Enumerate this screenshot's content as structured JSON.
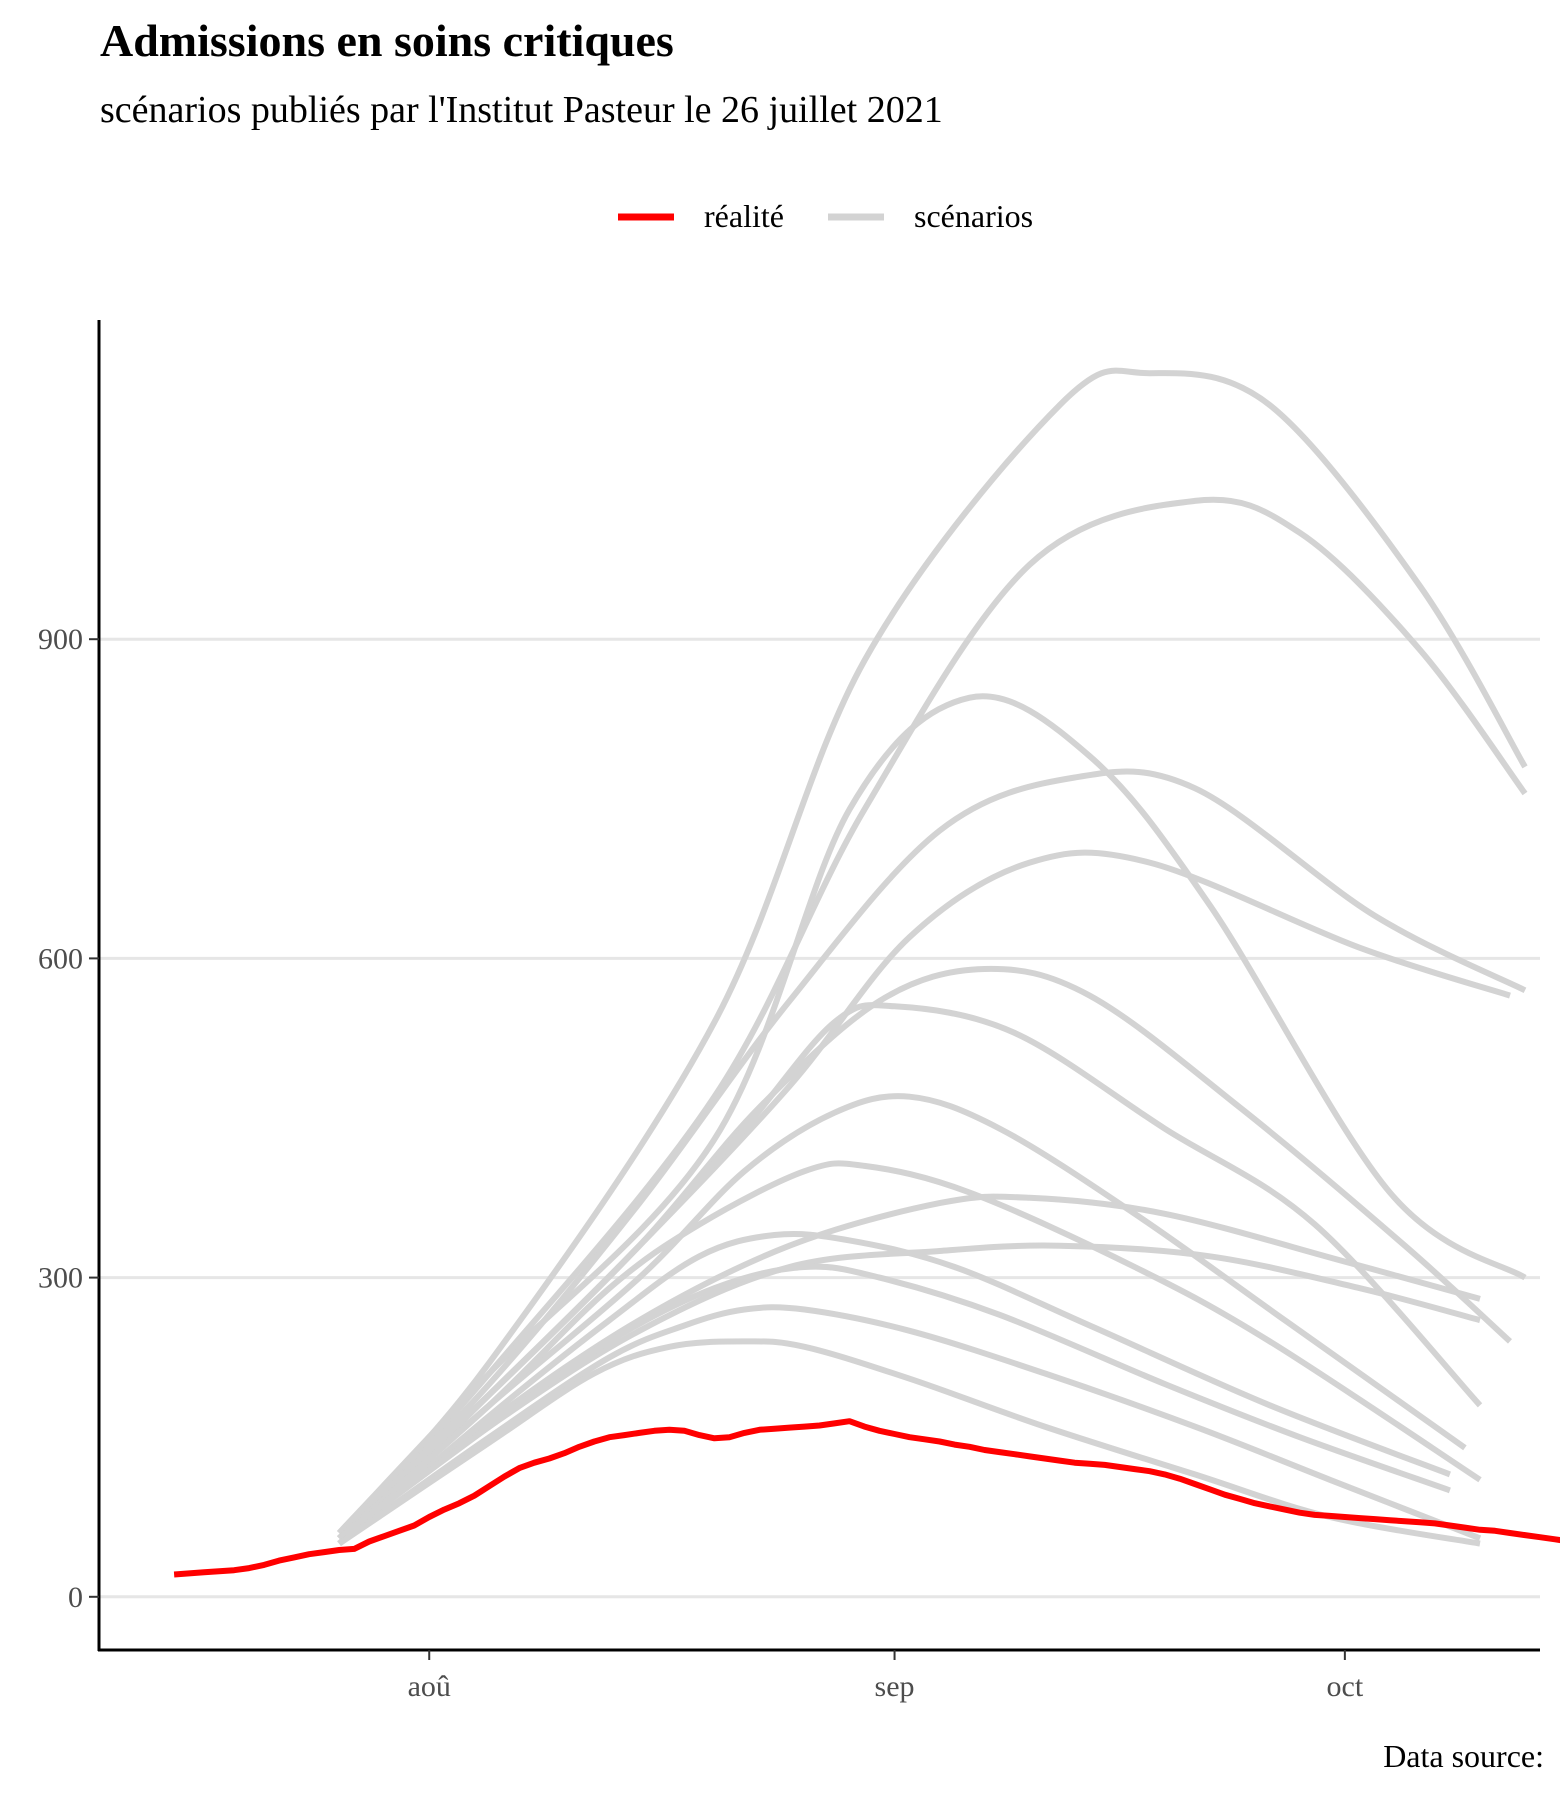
{
  "chart_data": {
    "type": "line",
    "title": "Admissions en soins critiques",
    "subtitle": "scénarios publiés par l'Institut Pasteur le 26 juillet 2021",
    "caption": "Data source:",
    "xlabel": "",
    "ylabel": "",
    "x_ticks": [
      {
        "label": "aoû",
        "date": "2021-08-01"
      },
      {
        "label": "sep",
        "date": "2021-09-01"
      },
      {
        "label": "oct",
        "date": "2021-10-01"
      }
    ],
    "y_ticks": [
      0,
      300,
      600,
      900
    ],
    "xlim": [
      "2021-07-10",
      "2021-10-14"
    ],
    "ylim": [
      -50,
      1200
    ],
    "grid": "horizontal major only",
    "legend": {
      "position": "top",
      "entries": [
        {
          "label": "réalité",
          "color": "#ff0000"
        },
        {
          "label": "scénarios",
          "color": "#d3d3d3"
        }
      ]
    },
    "colors": {
      "reality": "#ff0000",
      "scenarios": "#d3d3d3",
      "grid": "#e6e6e6",
      "axis": "#000000"
    },
    "reality": {
      "name": "réalité",
      "start": "2021-07-15",
      "values": [
        21,
        22,
        23,
        24,
        25,
        27,
        30,
        34,
        37,
        40,
        42,
        44,
        45,
        52,
        57,
        62,
        67,
        75,
        82,
        88,
        95,
        104,
        113,
        121,
        126,
        130,
        135,
        141,
        146,
        150,
        152,
        154,
        156,
        157,
        156,
        152,
        149,
        150,
        154,
        157,
        158,
        159,
        160,
        161,
        163,
        165,
        160,
        156,
        153,
        150,
        148,
        146,
        143,
        141,
        138,
        136,
        134,
        132,
        130,
        128,
        126,
        125,
        124,
        122,
        120,
        118,
        115,
        111,
        106,
        101,
        96,
        92,
        88,
        85,
        82,
        79,
        77,
        76,
        75,
        74,
        73,
        72,
        71,
        70,
        69,
        67,
        65,
        63,
        62,
        60,
        58,
        56,
        54,
        52,
        50,
        48,
        47,
        46,
        45,
        44,
        43,
        42,
        41,
        40,
        40
      ]
    },
    "scenarios": {
      "name": "scénarios",
      "start": "2021-07-26",
      "end": "2021-09-29",
      "series": [
        [
          [
            0,
            60
          ],
          [
            10,
            220
          ],
          [
            25,
            540
          ],
          [
            35,
            880
          ],
          [
            48,
            1120
          ],
          [
            54,
            1150
          ],
          [
            62,
            1120
          ],
          [
            72,
            950
          ],
          [
            79,
            780
          ]
        ],
        [
          [
            0,
            55
          ],
          [
            10,
            210
          ],
          [
            25,
            470
          ],
          [
            35,
            740
          ],
          [
            46,
            970
          ],
          [
            57,
            1030
          ],
          [
            64,
            1000
          ],
          [
            72,
            890
          ],
          [
            79,
            755
          ]
        ],
        [
          [
            0,
            60
          ],
          [
            10,
            210
          ],
          [
            25,
            430
          ],
          [
            34,
            740
          ],
          [
            42,
            845
          ],
          [
            50,
            790
          ],
          [
            58,
            650
          ],
          [
            70,
            380
          ],
          [
            79,
            300
          ]
        ],
        [
          [
            0,
            55
          ],
          [
            10,
            200
          ],
          [
            20,
            370
          ],
          [
            30,
            560
          ],
          [
            40,
            720
          ],
          [
            49,
            770
          ],
          [
            57,
            760
          ],
          [
            69,
            640
          ],
          [
            79,
            570
          ]
        ],
        [
          [
            0,
            55
          ],
          [
            10,
            190
          ],
          [
            20,
            330
          ],
          [
            30,
            480
          ],
          [
            38,
            620
          ],
          [
            46,
            690
          ],
          [
            54,
            690
          ],
          [
            68,
            610
          ],
          [
            78,
            565
          ]
        ],
        [
          [
            0,
            50
          ],
          [
            10,
            190
          ],
          [
            20,
            330
          ],
          [
            28,
            460
          ],
          [
            36,
            560
          ],
          [
            43,
            590
          ],
          [
            50,
            565
          ],
          [
            60,
            460
          ],
          [
            71,
            330
          ],
          [
            78,
            240
          ]
        ],
        [
          [
            0,
            60
          ],
          [
            10,
            190
          ],
          [
            20,
            330
          ],
          [
            27,
            440
          ],
          [
            33,
            540
          ],
          [
            37,
            555
          ],
          [
            45,
            530
          ],
          [
            55,
            440
          ],
          [
            65,
            350
          ],
          [
            76,
            180
          ]
        ],
        [
          [
            0,
            55
          ],
          [
            10,
            180
          ],
          [
            20,
            300
          ],
          [
            27,
            400
          ],
          [
            33,
            455
          ],
          [
            38,
            470
          ],
          [
            44,
            440
          ],
          [
            53,
            360
          ],
          [
            63,
            260
          ],
          [
            75,
            140
          ]
        ],
        [
          [
            0,
            55
          ],
          [
            10,
            180
          ],
          [
            18,
            290
          ],
          [
            24,
            350
          ],
          [
            31,
            400
          ],
          [
            35,
            405
          ],
          [
            42,
            380
          ],
          [
            53,
            310
          ],
          [
            62,
            240
          ],
          [
            76,
            110
          ]
        ],
        [
          [
            0,
            50
          ],
          [
            10,
            170
          ],
          [
            18,
            260
          ],
          [
            24,
            320
          ],
          [
            29,
            340
          ],
          [
            34,
            335
          ],
          [
            41,
            310
          ],
          [
            50,
            255
          ],
          [
            62,
            180
          ],
          [
            74,
            115
          ]
        ],
        [
          [
            0,
            55
          ],
          [
            10,
            165
          ],
          [
            20,
            260
          ],
          [
            30,
            330
          ],
          [
            40,
            370
          ],
          [
            46,
            375
          ],
          [
            55,
            360
          ],
          [
            67,
            315
          ],
          [
            76,
            280
          ]
        ],
        [
          [
            0,
            55
          ],
          [
            10,
            160
          ],
          [
            20,
            250
          ],
          [
            30,
            310
          ],
          [
            40,
            325
          ],
          [
            48,
            330
          ],
          [
            58,
            320
          ],
          [
            68,
            290
          ],
          [
            76,
            260
          ]
        ],
        [
          [
            0,
            55
          ],
          [
            10,
            160
          ],
          [
            18,
            240
          ],
          [
            25,
            290
          ],
          [
            31,
            310
          ],
          [
            36,
            300
          ],
          [
            44,
            265
          ],
          [
            55,
            200
          ],
          [
            64,
            150
          ],
          [
            74,
            100
          ]
        ],
        [
          [
            0,
            50
          ],
          [
            10,
            150
          ],
          [
            18,
            225
          ],
          [
            23,
            255
          ],
          [
            27,
            270
          ],
          [
            31,
            270
          ],
          [
            38,
            250
          ],
          [
            47,
            210
          ],
          [
            57,
            160
          ],
          [
            66,
            110
          ],
          [
            76,
            55
          ]
        ],
        [
          [
            0,
            50
          ],
          [
            10,
            145
          ],
          [
            17,
            210
          ],
          [
            22,
            235
          ],
          [
            27,
            240
          ],
          [
            31,
            235
          ],
          [
            38,
            205
          ],
          [
            47,
            160
          ],
          [
            57,
            115
          ],
          [
            66,
            75
          ],
          [
            76,
            50
          ]
        ]
      ]
    }
  }
}
